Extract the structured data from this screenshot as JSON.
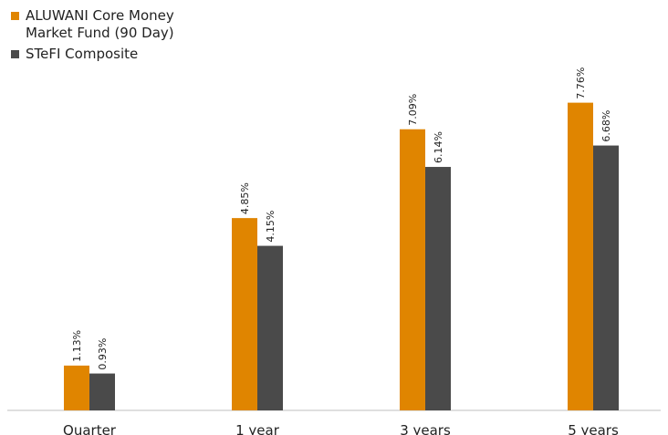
{
  "colors": {
    "fund": "#E08500",
    "benchmark": "#4A4A4A",
    "axis": "#BFBFBF",
    "text": "#222222"
  },
  "legend": {
    "fund_label": "ALUWANI Core Money Market Fund (90 Day)",
    "benchmark_label": "STeFI Composite"
  },
  "chart_data": {
    "type": "bar",
    "categories": [
      "Quarter",
      "1 year",
      "3 years",
      "5 years"
    ],
    "series": [
      {
        "name": "ALUWANI Core Money Market Fund (90 Day)",
        "color": "#E08500",
        "values": [
          1.13,
          4.85,
          7.09,
          7.76
        ],
        "labels": [
          "1.13%",
          "4.85%",
          "7.09%",
          "7.76%"
        ]
      },
      {
        "name": "STeFI Composite",
        "color": "#4A4A4A",
        "values": [
          0.93,
          4.15,
          6.14,
          6.68
        ],
        "labels": [
          "0.93%",
          "4.15%",
          "6.14%",
          "6.68%"
        ]
      }
    ],
    "ylim": [
      0,
      9.2
    ],
    "grid": false,
    "legend_position": "top-left"
  }
}
